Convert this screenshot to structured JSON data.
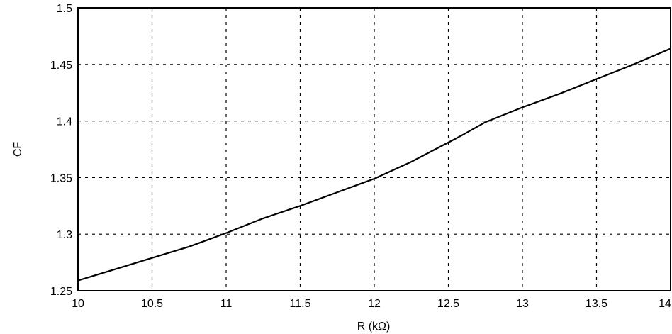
{
  "chart_data": {
    "type": "line",
    "xlabel": "R (kΩ)",
    "ylabel": "CF",
    "xlim": [
      10,
      14
    ],
    "ylim": [
      1.25,
      1.5
    ],
    "grid": true,
    "xticks": [
      "10",
      "10.5",
      "11",
      "11.5",
      "12",
      "12.5",
      "13",
      "13.5",
      "14"
    ],
    "yticks": [
      "1.25",
      "1.3",
      "1.35",
      "1.4",
      "1.45",
      "1.5"
    ],
    "series": [
      {
        "x": [
          10,
          10.25,
          10.5,
          10.75,
          11,
          11.25,
          11.5,
          11.75,
          12,
          12.25,
          12.5,
          12.6,
          12.75,
          13,
          13.25,
          13.5,
          13.75,
          14
        ],
        "y": [
          1.259,
          1.269,
          1.279,
          1.289,
          1.301,
          1.314,
          1.325,
          1.337,
          1.349,
          1.364,
          1.381,
          1.388,
          1.399,
          1.412,
          1.424,
          1.437,
          1.45,
          1.464
        ]
      }
    ]
  }
}
